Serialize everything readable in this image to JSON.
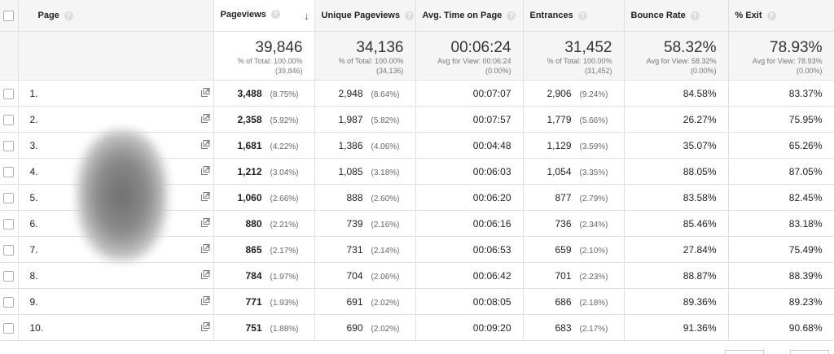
{
  "columns": {
    "page": "Page",
    "pageviews": "Pageviews",
    "unique_pageviews": "Unique Pageviews",
    "avg_time": "Avg. Time on Page",
    "entrances": "Entrances",
    "bounce_rate": "Bounce Rate",
    "exit": "% Exit"
  },
  "totals": {
    "pageviews": {
      "value": "39,846",
      "sub1": "% of Total: 100.00%",
      "sub2": "(39,846)"
    },
    "unique_pageviews": {
      "value": "34,136",
      "sub1": "% of Total: 100.00%",
      "sub2": "(34,136)"
    },
    "avg_time": {
      "value": "00:06:24",
      "sub1": "Avg for View: 00:06:24",
      "sub2": "(0.00%)"
    },
    "entrances": {
      "value": "31,452",
      "sub1": "% of Total: 100.00%",
      "sub2": "(31,452)"
    },
    "bounce_rate": {
      "value": "58.32%",
      "sub1": "Avg for View: 58.32%",
      "sub2": "(0.00%)"
    },
    "exit": {
      "value": "78.93%",
      "sub1": "Avg for View: 78.93%",
      "sub2": "(0.00%)"
    }
  },
  "rows": [
    {
      "rank": "1.",
      "pv": "3,488",
      "pv_pct": "(8.75%)",
      "upv": "2,948",
      "upv_pct": "(8.64%)",
      "avg": "00:07:07",
      "ent": "2,906",
      "ent_pct": "(9.24%)",
      "br": "84.58%",
      "exit": "83.37%"
    },
    {
      "rank": "2.",
      "pv": "2,358",
      "pv_pct": "(5.92%)",
      "upv": "1,987",
      "upv_pct": "(5.82%)",
      "avg": "00:07:57",
      "ent": "1,779",
      "ent_pct": "(5.66%)",
      "br": "26.27%",
      "exit": "75.95%"
    },
    {
      "rank": "3.",
      "pv": "1,681",
      "pv_pct": "(4.22%)",
      "upv": "1,386",
      "upv_pct": "(4.06%)",
      "avg": "00:04:48",
      "ent": "1,129",
      "ent_pct": "(3.59%)",
      "br": "35.07%",
      "exit": "65.26%"
    },
    {
      "rank": "4.",
      "pv": "1,212",
      "pv_pct": "(3.04%)",
      "upv": "1,085",
      "upv_pct": "(3.18%)",
      "avg": "00:06:03",
      "ent": "1,054",
      "ent_pct": "(3.35%)",
      "br": "88.05%",
      "exit": "87.05%"
    },
    {
      "rank": "5.",
      "pv": "1,060",
      "pv_pct": "(2.66%)",
      "upv": "888",
      "upv_pct": "(2.60%)",
      "avg": "00:06:20",
      "ent": "877",
      "ent_pct": "(2.79%)",
      "br": "83.58%",
      "exit": "82.45%"
    },
    {
      "rank": "6.",
      "pv": "880",
      "pv_pct": "(2.21%)",
      "upv": "739",
      "upv_pct": "(2.16%)",
      "avg": "00:06:16",
      "ent": "736",
      "ent_pct": "(2.34%)",
      "br": "85.46%",
      "exit": "83.18%"
    },
    {
      "rank": "7.",
      "pv": "865",
      "pv_pct": "(2.17%)",
      "upv": "731",
      "upv_pct": "(2.14%)",
      "avg": "00:06:53",
      "ent": "659",
      "ent_pct": "(2.10%)",
      "br": "27.84%",
      "exit": "75.49%"
    },
    {
      "rank": "8.",
      "pv": "784",
      "pv_pct": "(1.97%)",
      "upv": "704",
      "upv_pct": "(2.06%)",
      "avg": "00:06:42",
      "ent": "701",
      "ent_pct": "(2.23%)",
      "br": "88.87%",
      "exit": "88.39%"
    },
    {
      "rank": "9.",
      "pv": "771",
      "pv_pct": "(1.93%)",
      "upv": "691",
      "upv_pct": "(2.02%)",
      "avg": "00:08:05",
      "ent": "686",
      "ent_pct": "(2.18%)",
      "br": "89.36%",
      "exit": "89.23%"
    },
    {
      "rank": "10.",
      "pv": "751",
      "pv_pct": "(1.88%)",
      "upv": "690",
      "upv_pct": "(2.02%)",
      "avg": "00:09:20",
      "ent": "683",
      "ent_pct": "(2.17%)",
      "br": "91.36%",
      "exit": "90.68%"
    }
  ],
  "icons": {
    "help": "question-mark-icon",
    "sort": "sort-descending-arrow-icon",
    "open": "open-in-new-window-icon"
  },
  "colors": {
    "header_bg": "#f5f5f5",
    "border": "#e0e0e0"
  }
}
